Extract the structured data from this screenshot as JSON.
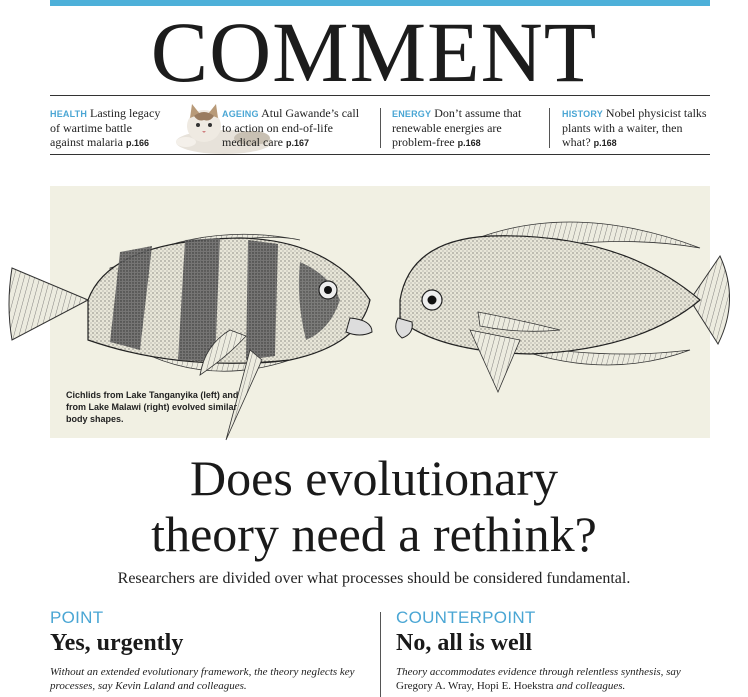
{
  "masthead": {
    "title": "COMMENT"
  },
  "teasers": [
    {
      "section": "HEALTH",
      "text": "Lasting legacy of wartime battle against malaria",
      "page": "p.166"
    },
    {
      "section": "AGEING",
      "text": "Atul Gawande’s call to action on end-of-life medical care",
      "page": "p.167"
    },
    {
      "section": "ENERGY",
      "text": "Don’t assume that renewable energies are problem-free",
      "page": "p.168"
    },
    {
      "section": "HISTORY",
      "text": "Nobel physicist talks plants with a waiter, then what?",
      "page": "p.168"
    }
  ],
  "figure": {
    "caption": "Cichlids from Lake Tanganyika (left) and from Lake Malawi (right) evolved similar body shapes."
  },
  "article": {
    "headline_line1": "Does evolutionary",
    "headline_line2": "theory need a rethink?",
    "standfirst": "Researchers are divided over what processes should be considered fundamental."
  },
  "point": {
    "label": "POINT",
    "title": "Yes, urgently",
    "body": "Without an extended evolutionary framework, the theory neglects key processes, say Kevin Laland and colleagues."
  },
  "counterpoint": {
    "label": "COUNTERPOINT",
    "title": "No, all is well",
    "body_italic_1": "Theory accommodates evidence through relentless synthesis, say",
    "authors": "Gregory A. Wray, Hopi E. Hoekstra",
    "body_italic_2": "and colleagues."
  },
  "colors": {
    "accent": "#4aa6d4",
    "figure_bg": "#f1f0e3"
  },
  "icons": [
    "cat-photo-icon",
    "cichlid-fish-left-icon",
    "cichlid-fish-right-icon"
  ]
}
